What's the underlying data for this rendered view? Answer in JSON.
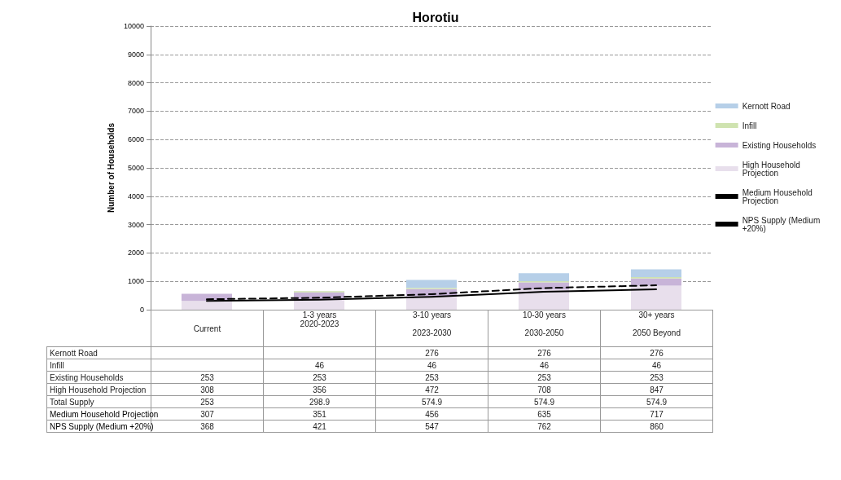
{
  "chart_data": {
    "type": "bar",
    "title": "Horotiu",
    "ylabel": "Number of Households",
    "stacked": true,
    "data_labels": true,
    "categories": [
      "Current",
      "1-3 years\n2020-2023",
      "3-10 years\n\n2023-2030",
      "10-30 years\n\n2030-2050",
      "30+ years\n\n2050 Beyond"
    ],
    "annotations": [
      "Total Supply",
      "253",
      "298.9",
      "574.9",
      "574.9",
      "574.9"
    ],
    "ylim": [
      0,
      10000
    ],
    "yticks": [
      0,
      1000,
      2000,
      3000,
      4000,
      5000,
      6000,
      7000,
      8000,
      9000,
      10000
    ],
    "grid": "y",
    "legend": "right",
    "series": [
      {
        "name": "High Household Projection",
        "color": "#e8dfec",
        "values": [
          308,
          356,
          472,
          708,
          847
        ]
      },
      {
        "name": "Existing Households",
        "color": "#c8b4d8",
        "values": [
          253,
          253,
          253,
          253,
          253
        ]
      },
      {
        "name": "Infill",
        "color": "#cfe3b0",
        "values": [
          null,
          46,
          46,
          46,
          46
        ]
      },
      {
        "name": "Kernott Road",
        "color": "#b6cfe8",
        "values": [
          null,
          null,
          276,
          276,
          276
        ]
      },
      {
        "name": "Medium Household Projection",
        "type": "line",
        "color": "#000000",
        "line_style": "solid",
        "marker": "none",
        "values": [
          307,
          351,
          456,
          635,
          717
        ]
      },
      {
        "name": "NPS Supply (Medium +20%)",
        "type": "line",
        "color": "#000000",
        "line_style": "dashed",
        "marker": "none",
        "values": [
          368,
          421,
          547,
          762,
          860
        ]
      }
    ]
  }
}
